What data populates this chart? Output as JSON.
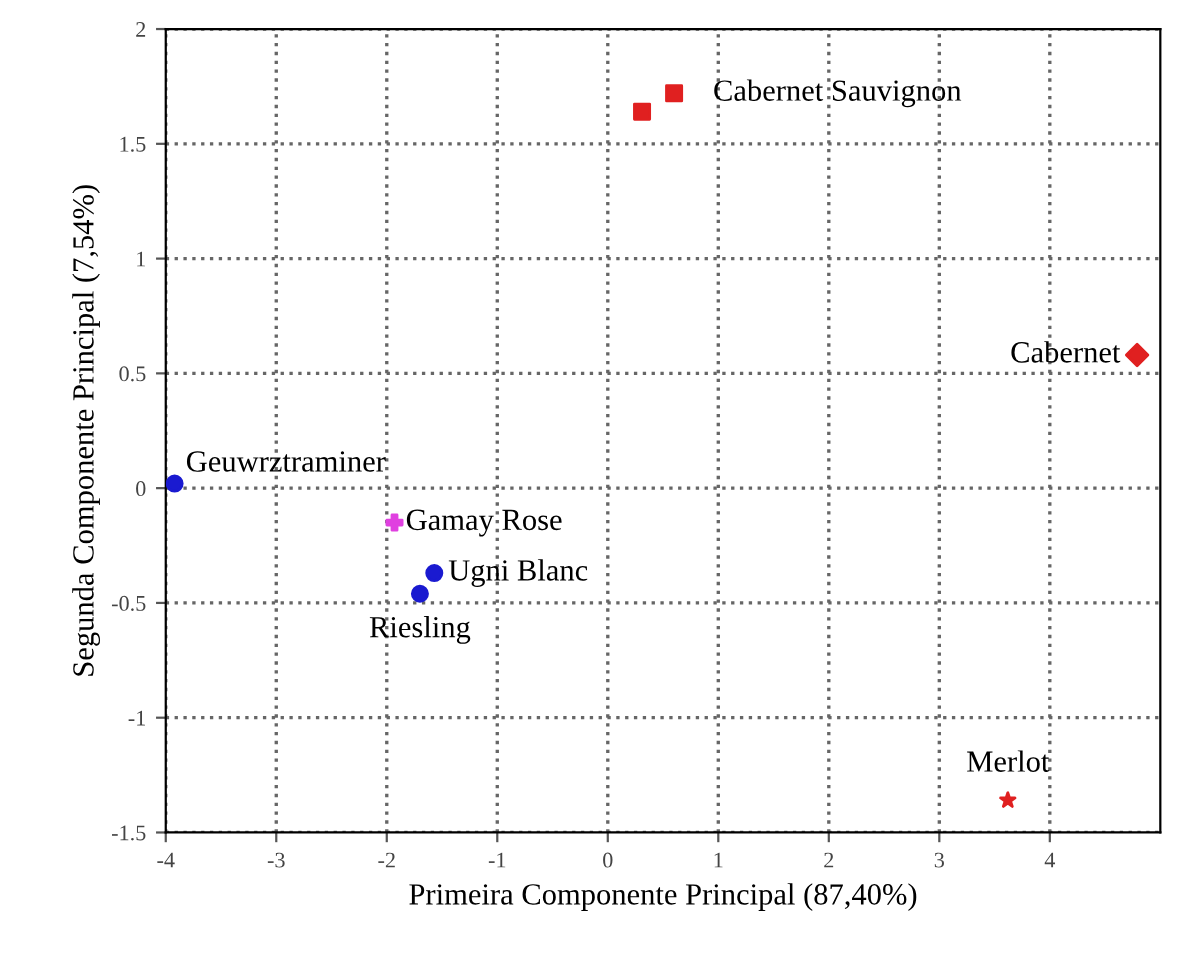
{
  "chart_data": {
    "type": "scatter",
    "xlabel": "Primeira Componente Principal (87,40%)",
    "ylabel": "Segunda Componente Principal (7,54%)",
    "xlim": [
      -4,
      5
    ],
    "ylim": [
      -1.5,
      2
    ],
    "xticks": [
      -4,
      -3,
      -2,
      -1,
      0,
      1,
      2,
      3,
      4
    ],
    "yticks": [
      -1.5,
      -1,
      -0.5,
      0,
      0.5,
      1,
      1.5,
      2
    ],
    "grid": true,
    "legend": false,
    "series": [
      {
        "name": "Geuwrztraminer",
        "color": "#1a1ad0",
        "marker": "circle",
        "x": [
          -3.92
        ],
        "values": [
          0.02
        ]
      },
      {
        "name": "Gamay Rose",
        "color": "#e040e0",
        "marker": "cross",
        "x": [
          -1.93
        ],
        "values": [
          -0.15
        ]
      },
      {
        "name": "Ugni Blanc",
        "color": "#1a1ad0",
        "marker": "circle",
        "x": [
          -1.57
        ],
        "values": [
          -0.37
        ]
      },
      {
        "name": "Riesling",
        "color": "#1a1ad0",
        "marker": "circle",
        "x": [
          -1.7
        ],
        "values": [
          -0.46
        ]
      },
      {
        "name": "Cabernet Sauvignon",
        "color": "#e02020",
        "marker": "square",
        "x": [
          0.31,
          0.6
        ],
        "values": [
          1.64,
          1.72
        ]
      },
      {
        "name": "Cabernet",
        "color": "#e02020",
        "marker": "diamond",
        "x": [
          4.79
        ],
        "values": [
          0.58
        ]
      },
      {
        "name": "Merlot",
        "color": "#e02020",
        "marker": "star",
        "x": [
          3.62
        ],
        "values": [
          -1.36
        ]
      }
    ]
  }
}
